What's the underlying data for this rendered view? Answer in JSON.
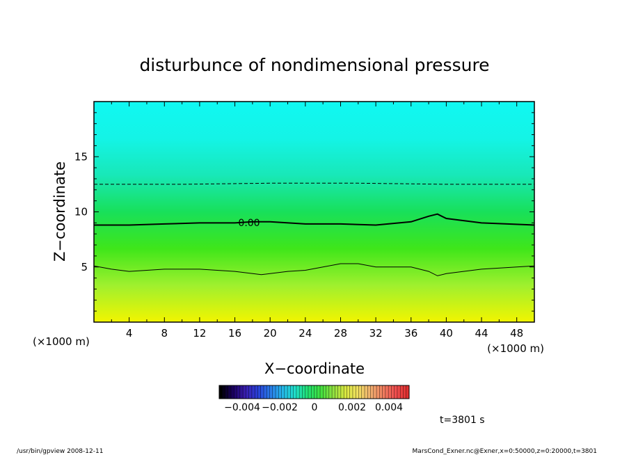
{
  "chart_data": {
    "type": "heatmap",
    "title": "disturbunce of nondimensional pressure",
    "xlabel": "X−coordinate",
    "ylabel": "Z−coordinate",
    "x_unit_left": "(×1000 m)",
    "x_unit_right": "(×1000 m)",
    "xlim": [
      0,
      50
    ],
    "ylim": [
      0,
      20
    ],
    "x_ticks": [
      4,
      8,
      12,
      16,
      20,
      24,
      28,
      32,
      36,
      40,
      44,
      48
    ],
    "y_ticks": [
      5,
      10,
      15
    ],
    "contour_label": "0.00",
    "contours": [
      {
        "kind": "solid-thick",
        "level": "0.00",
        "x": [
          0,
          4,
          8,
          12,
          16,
          18,
          20,
          24,
          28,
          32,
          36,
          38,
          39,
          40,
          44,
          50
        ],
        "y": [
          8.8,
          8.8,
          8.9,
          9.0,
          9.0,
          9.1,
          9.1,
          8.9,
          8.9,
          8.8,
          9.1,
          9.6,
          9.8,
          9.4,
          9.0,
          8.8
        ]
      },
      {
        "kind": "solid-thin",
        "x": [
          0,
          2,
          4,
          6,
          8,
          12,
          16,
          19,
          22,
          24,
          26,
          28,
          30,
          32,
          36,
          38,
          39,
          40,
          44,
          48,
          50
        ],
        "y": [
          5.1,
          4.8,
          4.6,
          4.7,
          4.8,
          4.8,
          4.6,
          4.3,
          4.6,
          4.7,
          5.0,
          5.3,
          5.3,
          5.0,
          5.0,
          4.6,
          4.2,
          4.4,
          4.8,
          5.0,
          5.1
        ]
      },
      {
        "kind": "dashed",
        "x": [
          0,
          10,
          20,
          30,
          40,
          50
        ],
        "y": [
          12.5,
          12.5,
          12.6,
          12.6,
          12.5,
          12.5
        ]
      }
    ],
    "colorbar": {
      "tick_labels": [
        "−0.004",
        "−0.002",
        "0",
        "0.002",
        "0.004"
      ],
      "colors": [
        "#000000",
        "#1a0060",
        "#3a1fb0",
        "#2840d8",
        "#2a7ce8",
        "#25b8e8",
        "#20e0c8",
        "#22e070",
        "#40e040",
        "#8ce040",
        "#d8e840",
        "#f0e060",
        "#f0b070",
        "#f08060",
        "#f05050",
        "#e03030"
      ]
    },
    "field_colors": [
      "#f2f500",
      "#9ff02e",
      "#3fe61a",
      "#18e05a",
      "#18e8b8",
      "#14f4e6",
      "#10f8f2"
    ]
  },
  "time_label": "t=3801 s",
  "footer": {
    "left": "/usr/bin/gpview   2008-12-11",
    "right": "MarsCond_Exner.nc@Exner,x=0:50000,z=0:20000,t=3801"
  }
}
